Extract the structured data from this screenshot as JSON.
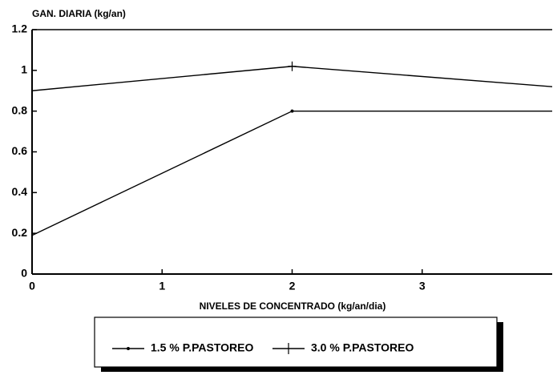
{
  "chart_data": {
    "type": "line",
    "y_label": "GAN. DIARIA (kg/an)",
    "x_label": "NIVELES DE CONCENTRADO (kg/an/dia)",
    "x": [
      0,
      2,
      4
    ],
    "series": [
      {
        "name": "1.5 % P.PASTOREO",
        "color": "#000000",
        "marker": "dot",
        "values": [
          0.19,
          0.8,
          0.8
        ]
      },
      {
        "name": "3.0 % P.PASTOREO",
        "color": "#000000",
        "marker": "plus",
        "values": [
          0.9,
          1.02,
          0.92
        ]
      }
    ],
    "xlim": [
      0,
      4
    ],
    "xticks": [
      0,
      1,
      2,
      3
    ],
    "ylim": [
      0,
      1.2
    ],
    "yticks": [
      0,
      0.2,
      0.4,
      0.6,
      0.8,
      1,
      1.2
    ],
    "grid": false,
    "legend": "bottom"
  }
}
